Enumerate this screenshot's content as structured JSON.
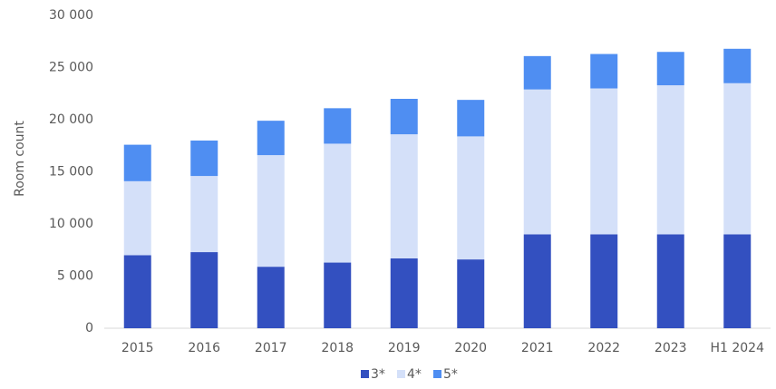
{
  "chart_data": {
    "type": "stacked_bar",
    "y_label": "Room count",
    "categories": [
      "2015",
      "2016",
      "2017",
      "2018",
      "2019",
      "2020",
      "2021",
      "2022",
      "2023",
      "H1 2024"
    ],
    "series": [
      {
        "name": "3*",
        "color": "#3350c0",
        "values": [
          7000,
          7300,
          5900,
          6300,
          6700,
          6600,
          9000,
          9000,
          9000,
          9000
        ]
      },
      {
        "name": "4*",
        "color": "#d4e0f9",
        "values": [
          7100,
          7300,
          10700,
          11400,
          11900,
          11800,
          13900,
          14000,
          14300,
          14500
        ]
      },
      {
        "name": "5*",
        "color": "#4f8ef2",
        "values": [
          3500,
          3400,
          3300,
          3400,
          3400,
          3500,
          3200,
          3300,
          3200,
          3300
        ]
      }
    ],
    "ylim": [
      0,
      30000
    ],
    "yticks": [
      0,
      {
        "value": 5000,
        "label": "5 000"
      },
      {
        "value": 10000,
        "label": "10 000"
      },
      {
        "value": 15000,
        "label": "15 000"
      },
      {
        "value": 20000,
        "label": "20 000"
      },
      {
        "value": 25000,
        "label": "25 000"
      },
      {
        "value": 30000,
        "label": "30 000"
      }
    ],
    "legend": "bottom"
  }
}
